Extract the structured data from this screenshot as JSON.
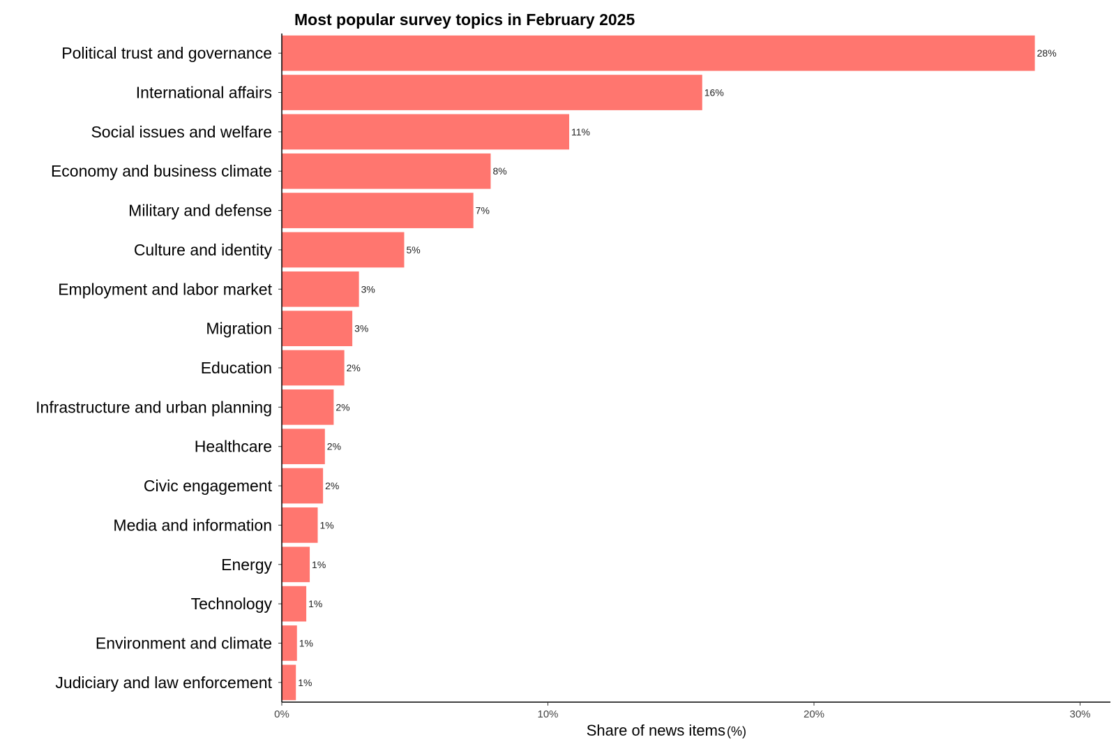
{
  "chart_data": {
    "type": "bar",
    "orientation": "horizontal",
    "title": "Most popular survey topics in February 2025",
    "xlabel": "Share of news items",
    "xlabel_unit": "(%)",
    "ylabel": "",
    "xlim": [
      0,
      31
    ],
    "x_ticks": [
      0,
      10,
      20,
      30
    ],
    "x_tick_labels": [
      "0%",
      "10%",
      "20%",
      "30%"
    ],
    "grid": false,
    "bar_color": "#FF766F",
    "categories": [
      "Political trust and governance",
      "International affairs",
      "Social issues and welfare",
      "Economy and business climate",
      "Military and defense",
      "Culture and identity",
      "Employment and labor market",
      "Migration",
      "Education",
      "Infrastructure and urban planning",
      "Healthcare",
      "Civic engagement",
      "Media and information",
      "Energy",
      "Technology",
      "Environment and climate",
      "Judiciary and law enforcement"
    ],
    "values": [
      28.3,
      15.8,
      10.8,
      7.85,
      7.2,
      4.6,
      2.9,
      2.65,
      2.35,
      1.95,
      1.62,
      1.55,
      1.35,
      1.05,
      0.92,
      0.57,
      0.53
    ],
    "data_labels": [
      "28%",
      "16%",
      "11%",
      "8%",
      "7%",
      "5%",
      "3%",
      "3%",
      "2%",
      "2%",
      "2%",
      "2%",
      "1%",
      "1%",
      "1%",
      "1%",
      "1%"
    ]
  }
}
